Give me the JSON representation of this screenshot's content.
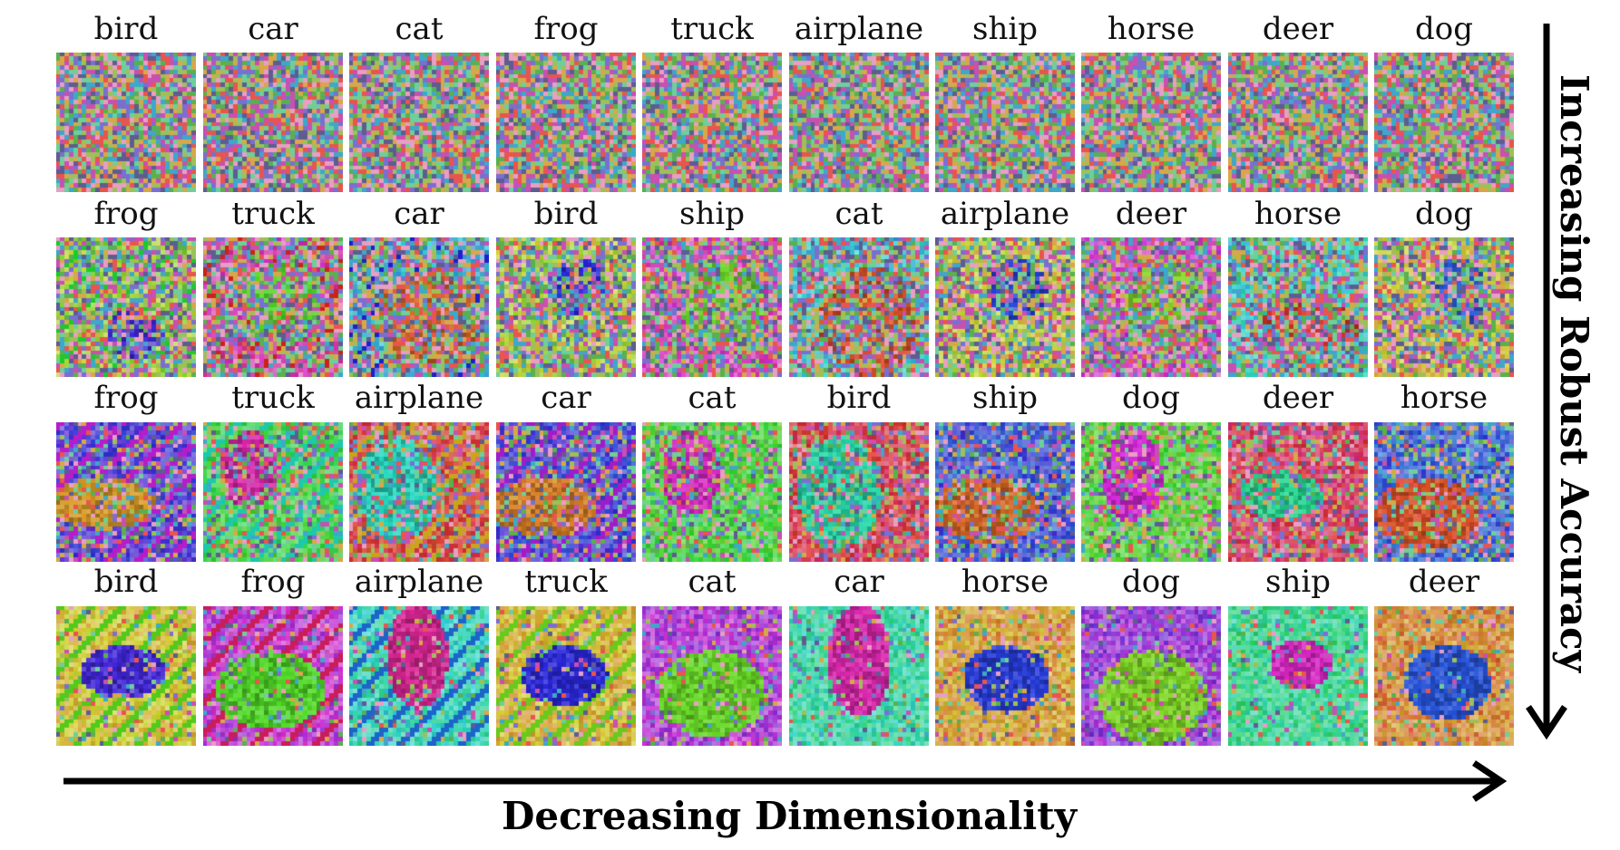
{
  "x_axis_label": "Decreasing Dimensionality",
  "y_axis_label": "Increasing Robust Accuracy",
  "colors": {
    "noise": [
      "#e8554e",
      "#5ab04f",
      "#7a6fd0",
      "#d7a84a",
      "#3fa7c9",
      "#c94fb1",
      "#9fbf5a",
      "#5d5d8f",
      "#e79fc2",
      "#6fcf9a"
    ]
  },
  "rows": [
    {
      "labels": [
        "bird",
        "car",
        "cat",
        "frog",
        "truck",
        "airplane",
        "ship",
        "horse",
        "deer",
        "dog"
      ],
      "style": "noise"
    },
    {
      "labels": [
        "frog",
        "truck",
        "car",
        "bird",
        "ship",
        "cat",
        "airplane",
        "deer",
        "horse",
        "dog"
      ],
      "style": "faint"
    },
    {
      "labels": [
        "frog",
        "truck",
        "airplane",
        "car",
        "cat",
        "bird",
        "ship",
        "dog",
        "deer",
        "horse"
      ],
      "style": "medium"
    },
    {
      "labels": [
        "bird",
        "frog",
        "airplane",
        "truck",
        "cat",
        "car",
        "horse",
        "dog",
        "ship",
        "deer"
      ],
      "style": "strong"
    }
  ]
}
